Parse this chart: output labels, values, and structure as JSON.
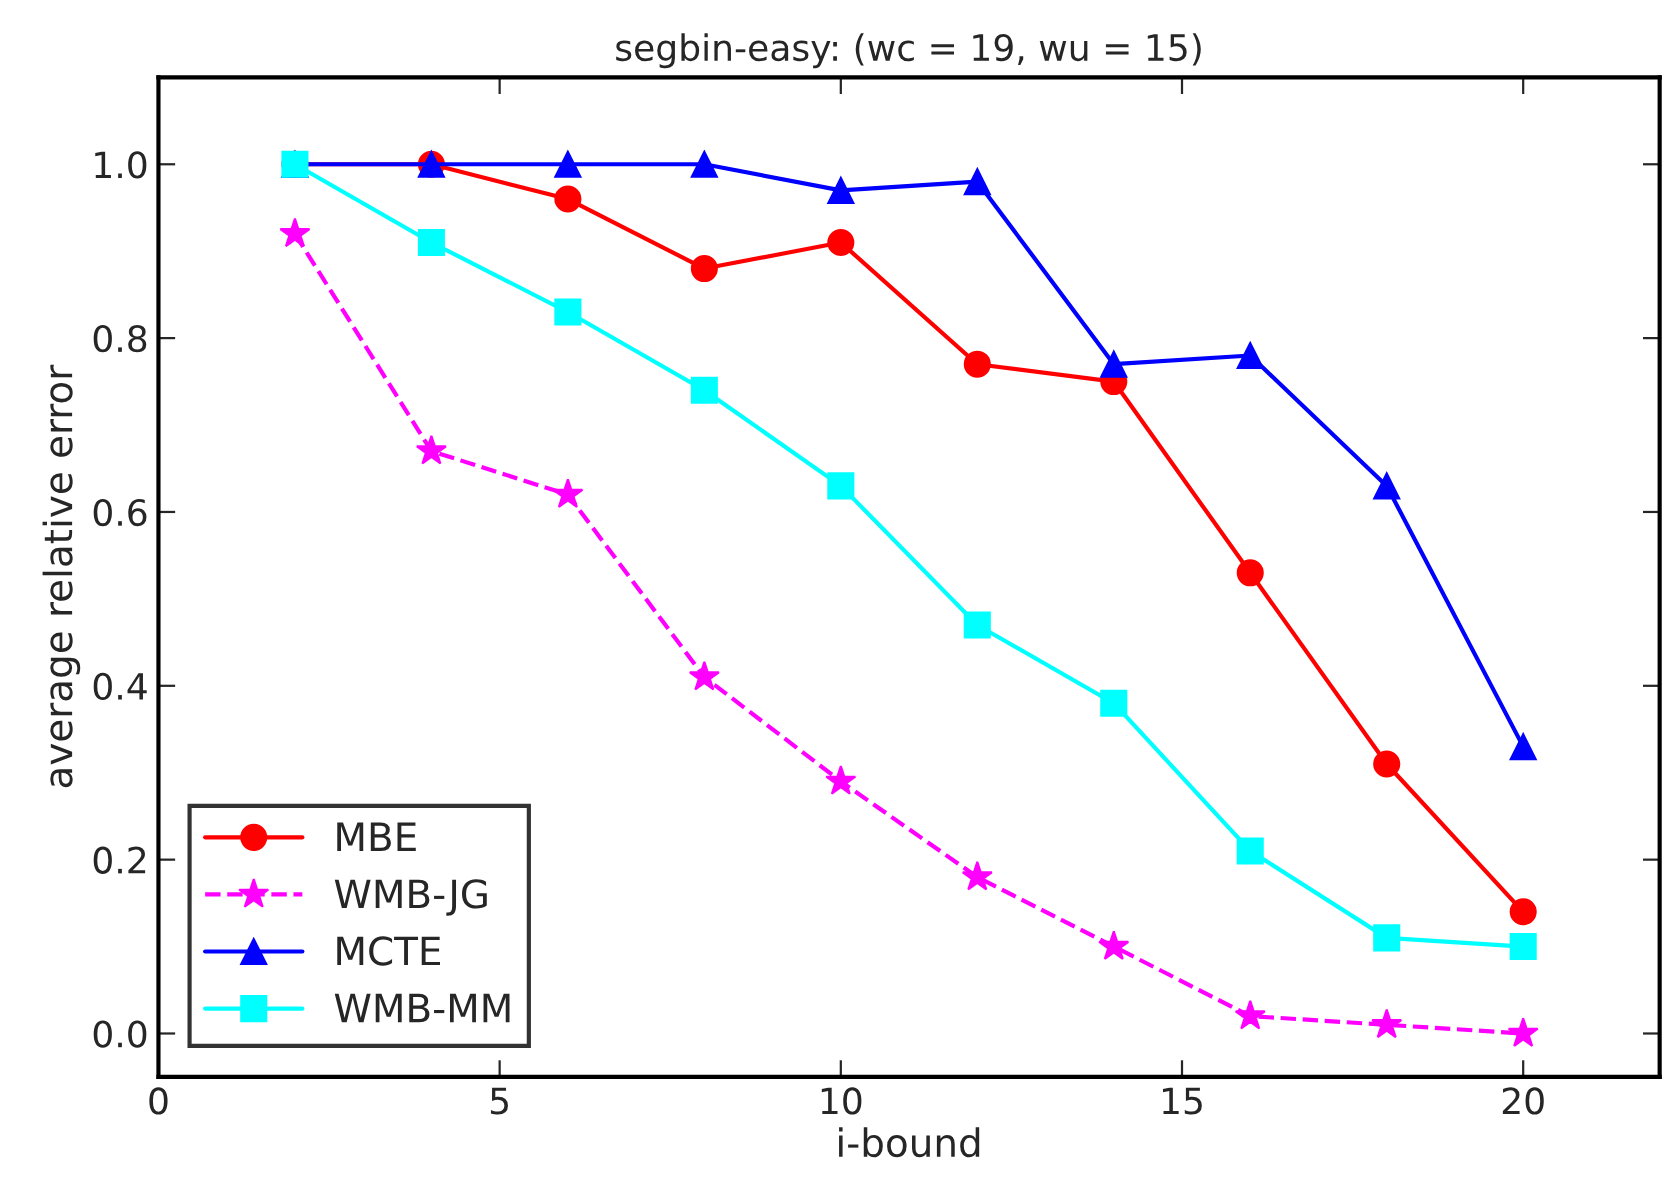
{
  "chart_data": {
    "type": "line",
    "title": "segbin-easy: (wc = 19, wu = 15)",
    "xlabel": "i-bound",
    "ylabel": "average relative error",
    "x": [
      2,
      4,
      6,
      8,
      10,
      12,
      14,
      16,
      18,
      20
    ],
    "xlim": [
      0,
      22
    ],
    "xticks": [
      0,
      5,
      10,
      15,
      20
    ],
    "ylim": [
      -0.05,
      1.1
    ],
    "yticks": [
      {
        "value": 0,
        "label": "0.0"
      },
      {
        "value": 0.2,
        "label": "0.2"
      },
      {
        "value": 0.4,
        "label": "0.4"
      },
      {
        "value": 0.6,
        "label": "0.6"
      },
      {
        "value": 0.8,
        "label": "0.8"
      },
      {
        "value": 1.0,
        "label": "1.0"
      }
    ],
    "grid": false,
    "legend": "bottom left",
    "series": [
      {
        "name": "MBE",
        "color": "#ff0000",
        "marker": "circle",
        "line_style": "solid",
        "values": [
          1.0,
          1.0,
          0.96,
          0.88,
          0.91,
          0.77,
          0.75,
          0.53,
          0.31,
          0.14
        ]
      },
      {
        "name": "WMB-JG",
        "color": "#ff00ff",
        "marker": "star",
        "line_style": "dashed",
        "values": [
          0.92,
          0.67,
          0.62,
          0.41,
          0.29,
          0.18,
          0.1,
          0.02,
          0.01,
          0.0
        ]
      },
      {
        "name": "MCTE",
        "color": "#0000ff",
        "marker": "triangle",
        "line_style": "solid",
        "values": [
          1.0,
          1.0,
          1.0,
          1.0,
          0.97,
          0.98,
          0.77,
          0.78,
          0.63,
          0.33
        ]
      },
      {
        "name": "WMB-MM",
        "color": "#00ffff",
        "marker": "square",
        "line_style": "solid",
        "values": [
          1.0,
          0.91,
          0.83,
          0.74,
          0.63,
          0.47,
          0.38,
          0.21,
          0.11,
          0.1
        ]
      }
    ]
  }
}
